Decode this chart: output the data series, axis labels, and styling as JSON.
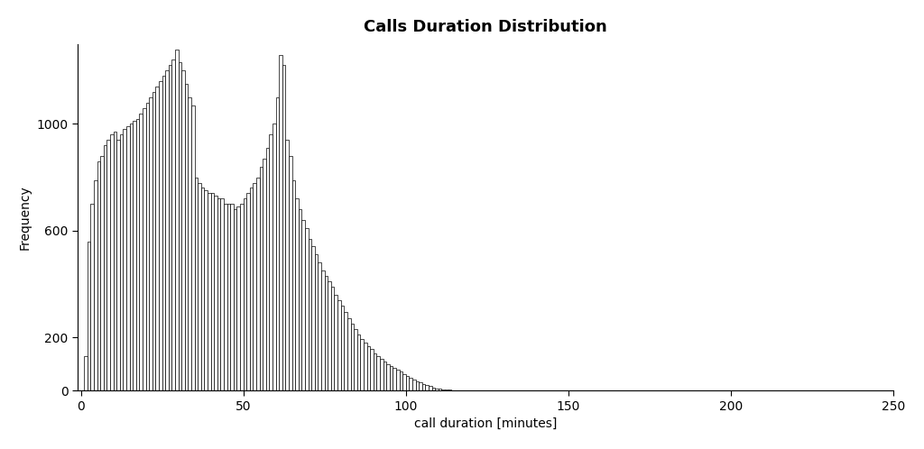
{
  "title": "Calls Duration Distribution",
  "xlabel": "call duration [minutes]",
  "ylabel": "Frequency",
  "xlim": [
    -1,
    250
  ],
  "ylim": [
    0,
    1300
  ],
  "yticks": [
    0,
    200,
    600,
    1000
  ],
  "xticks": [
    0,
    50,
    100,
    150,
    200,
    250
  ],
  "bar_color": "white",
  "bar_edgecolor": "black",
  "background_color": "white",
  "title_fontsize": 13,
  "label_fontsize": 10,
  "bin_width": 1,
  "bin_start": 1,
  "frequencies": [
    130,
    560,
    700,
    790,
    860,
    880,
    920,
    940,
    960,
    970,
    940,
    960,
    980,
    990,
    1000,
    1010,
    1020,
    1040,
    1060,
    1080,
    1100,
    1120,
    1140,
    1160,
    1180,
    1200,
    1220,
    1240,
    1280,
    1230,
    1200,
    1150,
    1100,
    1070,
    800,
    780,
    760,
    750,
    740,
    740,
    730,
    720,
    720,
    700,
    700,
    700,
    680,
    690,
    700,
    720,
    740,
    760,
    780,
    800,
    840,
    870,
    910,
    960,
    1000,
    1100,
    1260,
    1220,
    940,
    880,
    790,
    720,
    680,
    640,
    610,
    570,
    540,
    510,
    480,
    450,
    430,
    410,
    390,
    360,
    340,
    320,
    295,
    270,
    250,
    230,
    210,
    195,
    180,
    165,
    155,
    140,
    130,
    120,
    110,
    100,
    92,
    85,
    78,
    70,
    62,
    55,
    48,
    42,
    36,
    30,
    25,
    20,
    16,
    12,
    8,
    6,
    5,
    4,
    3,
    2,
    2,
    1,
    1,
    1,
    1,
    1,
    0,
    1,
    0,
    1,
    0,
    1,
    1,
    0,
    0,
    0,
    0,
    0,
    1,
    0,
    0,
    0,
    0,
    0,
    0,
    0,
    0,
    0,
    0,
    0,
    0,
    0,
    0,
    0,
    0,
    0,
    0,
    0,
    0,
    0,
    0,
    0,
    0,
    0,
    0,
    0,
    0,
    0,
    0,
    0,
    0,
    0,
    0,
    0,
    0,
    0,
    0,
    0,
    0,
    0,
    0,
    0,
    0,
    0,
    0,
    0,
    0,
    0,
    0,
    0,
    0,
    0,
    0,
    0,
    0,
    0,
    0,
    0,
    0,
    0,
    0,
    0,
    0,
    0,
    0,
    0,
    0,
    0,
    0,
    0,
    0,
    0,
    0,
    0,
    0,
    0,
    0,
    0,
    0,
    0,
    0,
    0,
    0,
    0,
    0,
    0,
    0,
    0,
    0,
    0,
    0,
    0,
    0,
    0,
    0,
    0,
    0,
    0,
    0,
    0,
    0,
    0,
    0,
    0,
    0,
    1
  ]
}
